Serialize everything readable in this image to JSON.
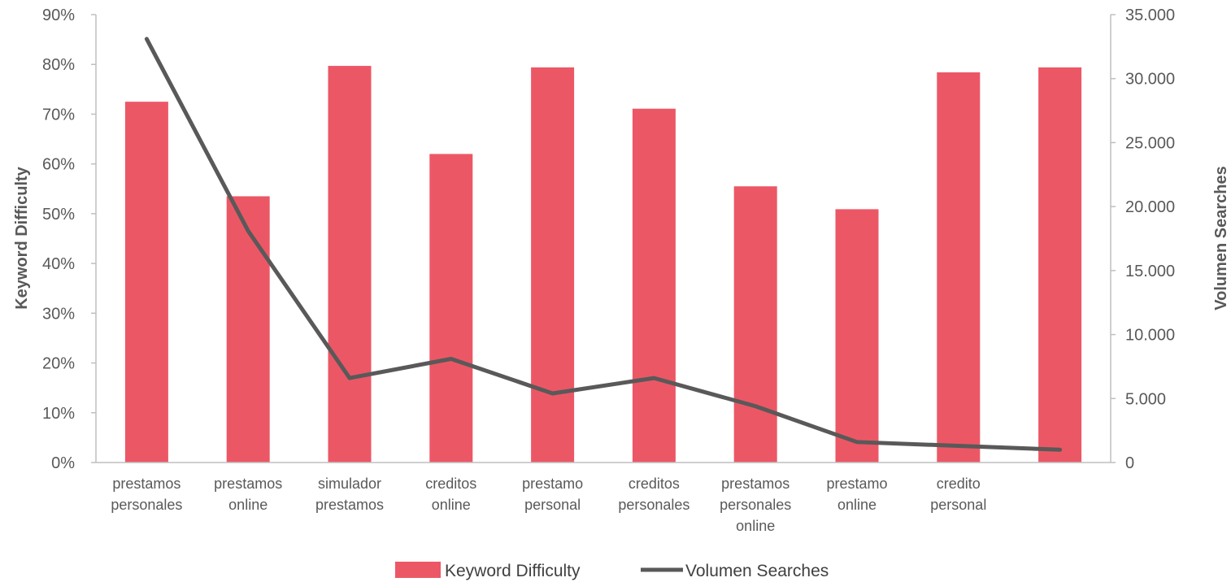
{
  "chart_data": {
    "type": "bar",
    "categories": [
      [
        "prestamos",
        "personales"
      ],
      [
        "prestamos",
        "online"
      ],
      [
        "simulador",
        "prestamos"
      ],
      [
        "creditos",
        "online"
      ],
      [
        "prestamo",
        "personal"
      ],
      [
        "creditos",
        "personales"
      ],
      [
        "prestamos",
        "personales",
        "online"
      ],
      [
        "prestamo",
        "online"
      ],
      [
        "credito",
        "personal"
      ],
      []
    ],
    "series": [
      {
        "name": "Keyword Difficulty",
        "type": "bar",
        "axis": "left",
        "color": "#ec5766",
        "values": [
          0.725,
          0.535,
          0.797,
          0.62,
          0.794,
          0.711,
          0.555,
          0.509,
          0.784,
          0.794
        ]
      },
      {
        "name": "Volumen Searches",
        "type": "line",
        "axis": "right",
        "color": "#595959",
        "values": [
          33100,
          18100,
          6600,
          8100,
          5400,
          6600,
          4400,
          1600,
          1300,
          1000
        ]
      }
    ],
    "ylabel_left": "Keyword Difficulty",
    "ylabel_right": "Volumen Searches",
    "ylim_left": [
      0,
      0.9
    ],
    "ylim_right": [
      0,
      35000
    ],
    "yticks_left": [
      "0%",
      "10%",
      "20%",
      "30%",
      "40%",
      "50%",
      "60%",
      "70%",
      "80%",
      "90%"
    ],
    "yticks_right": [
      "0",
      "5.000",
      "10.000",
      "15.000",
      "20.000",
      "25.000",
      "30.000",
      "35.000"
    ],
    "grid": false,
    "legend_position": "bottom"
  }
}
